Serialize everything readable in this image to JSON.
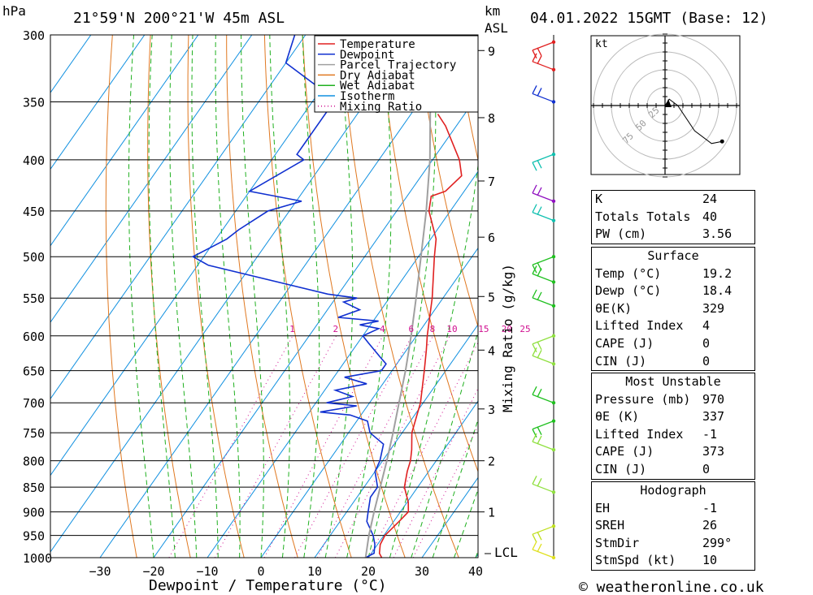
{
  "header": {
    "left_unit": "hPa",
    "location": "21°59'N  200°21'W  45m  ASL",
    "km_label": "km",
    "asl_label": "ASL",
    "datetime": "04.01.2022  15GMT  (Base: 12)"
  },
  "footer": {
    "xlabel": "Dewpoint / Temperature (°C)",
    "copyright": "© weatheronline.co.uk",
    "mixing_ratio_axis": "Mixing Ratio (g/kg)",
    "lcl": "LCL"
  },
  "colors": {
    "temperature": "#e02020",
    "dewpoint": "#1030d0",
    "parcel": "#a0a0a0",
    "dry_adiabat": "#e07820",
    "wet_adiabat": "#20b020",
    "isotherm": "#1090e0",
    "mixing_ratio": "#d01090"
  },
  "chart_data": {
    "type": "line",
    "title": "21°59'N  200°21'W  45m  ASL",
    "xlabel": "Dewpoint / Temperature (°C)",
    "ylabel": "hPa",
    "x_ticks": [
      -30,
      -20,
      -10,
      0,
      10,
      20,
      30,
      40
    ],
    "pressure_levels": [
      300,
      350,
      400,
      450,
      500,
      550,
      600,
      650,
      700,
      750,
      800,
      850,
      900,
      950,
      1000
    ],
    "km_ticks": [
      {
        "label": "9",
        "p": 311
      },
      {
        "label": "8",
        "p": 363
      },
      {
        "label": "7",
        "p": 420
      },
      {
        "label": "6",
        "p": 478
      },
      {
        "label": "5",
        "p": 548
      },
      {
        "label": "4",
        "p": 620
      },
      {
        "label": "3",
        "p": 710
      },
      {
        "label": "2",
        "p": 800
      },
      {
        "label": "1",
        "p": 900
      }
    ],
    "mixing_ratio_labels": [
      "1",
      "2",
      "4",
      "6",
      "8",
      "10",
      "15",
      "20",
      "25"
    ],
    "mixing_ratio_values": [
      1,
      2,
      4,
      6,
      8,
      10,
      15,
      20,
      25
    ],
    "legend": [
      "Temperature",
      "Dewpoint",
      "Parcel Trajectory",
      "Dry Adiabat",
      "Wet Adiabat",
      "Isotherm",
      "Mixing Ratio"
    ],
    "series": [
      {
        "name": "Temperature",
        "points": [
          [
            1000,
            22.5
          ],
          [
            990,
            21.5
          ],
          [
            970,
            20.5
          ],
          [
            950,
            20.2
          ],
          [
            920,
            21
          ],
          [
            900,
            21.5
          ],
          [
            880,
            20.2
          ],
          [
            850,
            17.5
          ],
          [
            820,
            16
          ],
          [
            800,
            15.2
          ],
          [
            780,
            14
          ],
          [
            750,
            11.8
          ],
          [
            700,
            9.5
          ],
          [
            650,
            6
          ],
          [
            620,
            3.7
          ],
          [
            600,
            2
          ],
          [
            550,
            -2
          ],
          [
            500,
            -7
          ],
          [
            480,
            -9
          ],
          [
            450,
            -14
          ],
          [
            435,
            -15.5
          ],
          [
            430,
            -13.5
          ],
          [
            415,
            -12.5
          ],
          [
            400,
            -15
          ],
          [
            370,
            -22
          ],
          [
            360,
            -25
          ]
        ]
      },
      {
        "name": "Dewpoint",
        "points": [
          [
            1000,
            19.5
          ],
          [
            990,
            20.5
          ],
          [
            970,
            19.5
          ],
          [
            950,
            18
          ],
          [
            920,
            15
          ],
          [
            900,
            14
          ],
          [
            870,
            12.5
          ],
          [
            850,
            12.5
          ],
          [
            820,
            10
          ],
          [
            800,
            9.5
          ],
          [
            770,
            8
          ],
          [
            760,
            6
          ],
          [
            750,
            4
          ],
          [
            730,
            2
          ],
          [
            720,
            -2
          ],
          [
            715,
            -8
          ],
          [
            705,
            -2
          ],
          [
            700,
            -8
          ],
          [
            690,
            -4
          ],
          [
            680,
            -8
          ],
          [
            670,
            -3
          ],
          [
            660,
            -8
          ],
          [
            650,
            -2
          ],
          [
            640,
            -2
          ],
          [
            630,
            -4
          ],
          [
            610,
            -8
          ],
          [
            600,
            -10
          ],
          [
            590,
            -8
          ],
          [
            585,
            -12
          ],
          [
            580,
            -9
          ],
          [
            575,
            -17
          ],
          [
            565,
            -14
          ],
          [
            555,
            -18
          ],
          [
            550,
            -16
          ],
          [
            545,
            -22
          ],
          [
            510,
            -48
          ],
          [
            500,
            -52
          ],
          [
            490,
            -50
          ],
          [
            480,
            -48
          ],
          [
            470,
            -47
          ],
          [
            450,
            -44
          ],
          [
            440,
            -39
          ],
          [
            430,
            -50
          ],
          [
            400,
            -44
          ],
          [
            395,
            -46
          ],
          [
            350,
            -46
          ],
          [
            340,
            -50
          ],
          [
            320,
            -60
          ],
          [
            300,
            -62
          ]
        ]
      },
      {
        "name": "Parcel Trajectory",
        "points": [
          [
            1000,
            19.5
          ],
          [
            950,
            17.2
          ],
          [
            900,
            15.1
          ],
          [
            850,
            13
          ],
          [
            800,
            10.8
          ],
          [
            750,
            8.3
          ],
          [
            700,
            5.5
          ],
          [
            650,
            2.5
          ],
          [
            600,
            -1
          ],
          [
            550,
            -5
          ],
          [
            500,
            -9.5
          ],
          [
            450,
            -14.5
          ],
          [
            400,
            -20.5
          ],
          [
            350,
            -28
          ],
          [
            300,
            -37
          ]
        ]
      }
    ]
  },
  "wind_barbs": [
    {
      "p": 305,
      "color": "#e02020"
    },
    {
      "p": 325,
      "color": "#e02020"
    },
    {
      "p": 350,
      "color": "#1030d0"
    },
    {
      "p": 395,
      "color": "#10c0b0"
    },
    {
      "p": 440,
      "color": "#9010c0"
    },
    {
      "p": 460,
      "color": "#10c0b0"
    },
    {
      "p": 500,
      "color": "#20c020"
    },
    {
      "p": 530,
      "color": "#20c020"
    },
    {
      "p": 560,
      "color": "#20c020"
    },
    {
      "p": 600,
      "color": "#90e040"
    },
    {
      "p": 640,
      "color": "#90e040"
    },
    {
      "p": 700,
      "color": "#20c020"
    },
    {
      "p": 730,
      "color": "#20c020"
    },
    {
      "p": 780,
      "color": "#90e040"
    },
    {
      "p": 860,
      "color": "#90e040"
    },
    {
      "p": 930,
      "color": "#c0e020"
    },
    {
      "p": 1000,
      "color": "#e0e020"
    }
  ],
  "hodograph": {
    "unit": "kt",
    "ring_labels": [
      "25",
      "50",
      "75"
    ],
    "points": [
      [
        0,
        0
      ],
      [
        2,
        3
      ],
      [
        6,
        0
      ],
      [
        14,
        -12
      ],
      [
        22,
        -18
      ],
      [
        27,
        -17
      ]
    ]
  },
  "indices": {
    "rows": [
      {
        "label": "K",
        "value": "24"
      },
      {
        "label": "Totals Totals",
        "value": "40"
      },
      {
        "label": "PW (cm)",
        "value": "3.56"
      }
    ]
  },
  "surface": {
    "title": "Surface",
    "rows": [
      {
        "label": "Temp (°C)",
        "value": "19.2"
      },
      {
        "label": "Dewp (°C)",
        "value": "18.4"
      },
      {
        "label": "θE(K)",
        "value": "329"
      },
      {
        "label": "Lifted Index",
        "value": "4"
      },
      {
        "label": "CAPE (J)",
        "value": "0"
      },
      {
        "label": "CIN (J)",
        "value": "0"
      }
    ]
  },
  "most_unstable": {
    "title": "Most Unstable",
    "rows": [
      {
        "label": "Pressure (mb)",
        "value": "970"
      },
      {
        "label": "θE (K)",
        "value": "337"
      },
      {
        "label": "Lifted Index",
        "value": "-1"
      },
      {
        "label": "CAPE (J)",
        "value": "373"
      },
      {
        "label": "CIN (J)",
        "value": "0"
      }
    ]
  },
  "hodograph_table": {
    "title": "Hodograph",
    "rows": [
      {
        "label": "EH",
        "value": "-1"
      },
      {
        "label": "SREH",
        "value": "26"
      },
      {
        "label": "StmDir",
        "value": "299°"
      },
      {
        "label": "StmSpd (kt)",
        "value": "10"
      }
    ]
  }
}
